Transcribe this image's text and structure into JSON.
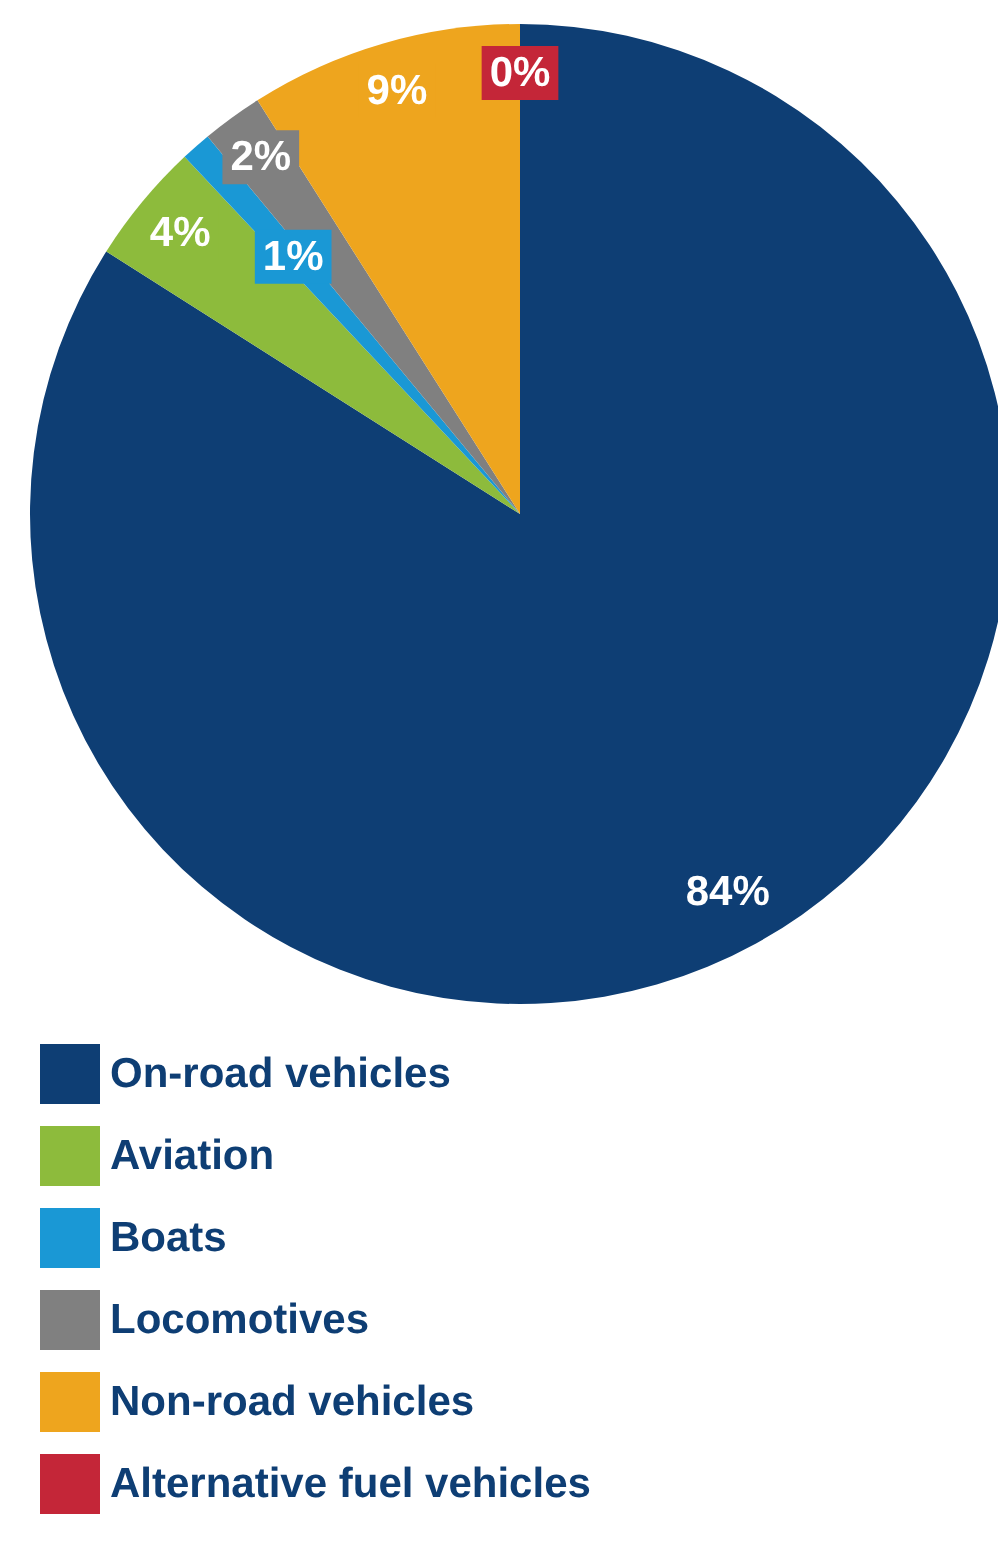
{
  "chart_data": {
    "type": "pie",
    "categories": [
      "On-road vehicles",
      "Aviation",
      "Boats",
      "Locomotives",
      "Non-road vehicles",
      "Alternative fuel vehicles"
    ],
    "values": [
      84,
      4,
      1,
      2,
      9,
      0
    ],
    "colors": [
      "#0e3e74",
      "#8dbb3c",
      "#1a98d5",
      "#808080",
      "#eea51e",
      "#c42638"
    ],
    "value_labels": [
      "84%",
      "4%",
      "1%",
      "2%",
      "9%",
      "0%"
    ],
    "legend": "bottom"
  }
}
